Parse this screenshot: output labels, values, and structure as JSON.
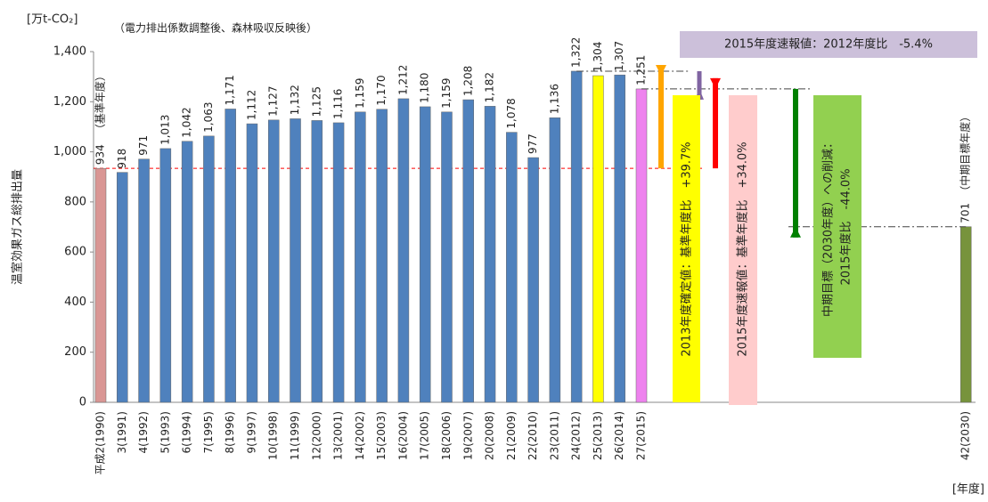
{
  "chart_data": {
    "type": "bar",
    "unit_label": "[万t-CO₂]",
    "subtitle": "（電力排出係数調整後、森林吸収反映後）",
    "y_label": "温室効果ガス総排出量",
    "x_unit": "[年度]",
    "x": [
      1990,
      1991,
      1992,
      1993,
      1994,
      1995,
      1996,
      1997,
      1998,
      1999,
      2000,
      2001,
      2002,
      2003,
      2004,
      2005,
      2006,
      2007,
      2008,
      2009,
      2010,
      2011,
      2012,
      2013,
      2014,
      2015,
      2030
    ],
    "categories": [
      "平成2(1990)",
      "3(1991)",
      "4(1992)",
      "5(1993)",
      "6(1994)",
      "7(1995)",
      "8(1996)",
      "9(1997)",
      "10(1998)",
      "11(1999)",
      "12(2000)",
      "13(2001)",
      "14(2002)",
      "15(2003)",
      "16(2004)",
      "17(2005)",
      "18(2006)",
      "19(2007)",
      "20(2008)",
      "21(2009)",
      "22(2010)",
      "23(2011)",
      "24(2012)",
      "25(2013)",
      "26(2014)",
      "27(2015)",
      "42(2030)"
    ],
    "values": [
      934,
      918,
      971,
      1013,
      1042,
      1063,
      1171,
      1112,
      1127,
      1132,
      1125,
      1116,
      1159,
      1170,
      1212,
      1180,
      1159,
      1208,
      1182,
      1078,
      977,
      1136,
      1322,
      1304,
      1307,
      1251,
      701
    ],
    "value_labels": [
      "934",
      "918",
      "971",
      "1,013",
      "1,042",
      "1,063",
      "1,171",
      "1,112",
      "1,127",
      "1,132",
      "1,125",
      "1,116",
      "1,159",
      "1,170",
      "1,212",
      "1,180",
      "1,159",
      "1,208",
      "1,182",
      "1,078",
      "977",
      "1,136",
      "1,322",
      "1,304",
      "1,307",
      "1,251",
      "701"
    ],
    "colors": [
      "#d99694",
      "#4f81bd",
      "#4f81bd",
      "#4f81bd",
      "#4f81bd",
      "#4f81bd",
      "#4f81bd",
      "#4f81bd",
      "#4f81bd",
      "#4f81bd",
      "#4f81bd",
      "#4f81bd",
      "#4f81bd",
      "#4f81bd",
      "#4f81bd",
      "#4f81bd",
      "#4f81bd",
      "#4f81bd",
      "#4f81bd",
      "#4f81bd",
      "#4f81bd",
      "#4f81bd",
      "#4f81bd",
      "#ffff00",
      "#4f81bd",
      "#ee82ee",
      "#77933c"
    ],
    "ylim": [
      0,
      1400
    ],
    "yticks": [
      0,
      200,
      400,
      600,
      800,
      {
        "value": 1000,
        "label": "1,000"
      },
      {
        "value": 1200,
        "label": "1,200"
      },
      {
        "value": 1400,
        "label": "1,400"
      }
    ],
    "annotations": {
      "base_year": "（基準年度）",
      "target_year": "（中期目標年度）",
      "vs_2012": "2015年度速報値：2012年度比　-5.4%",
      "vs_base_2013": "2013年度確定値：基準年度比　+39.7%",
      "vs_base_2015": "2015年度速報値：基準年度比　+34.0%",
      "target_line1": "中期目標（2030年度）への削減：",
      "target_line2": "2015年度比　-44.0%"
    }
  }
}
